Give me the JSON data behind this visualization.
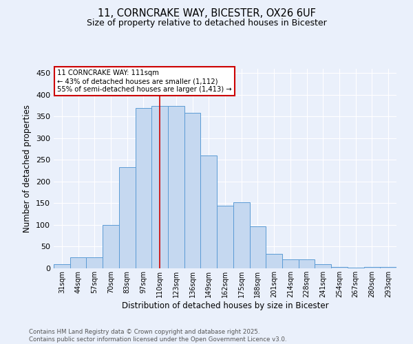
{
  "title1": "11, CORNCRAKE WAY, BICESTER, OX26 6UF",
  "title2": "Size of property relative to detached houses in Bicester",
  "xlabel": "Distribution of detached houses by size in Bicester",
  "ylabel": "Number of detached properties",
  "footer1": "Contains HM Land Registry data © Crown copyright and database right 2025.",
  "footer2": "Contains public sector information licensed under the Open Government Licence v3.0.",
  "bar_labels": [
    "31sqm",
    "44sqm",
    "57sqm",
    "70sqm",
    "83sqm",
    "97sqm",
    "110sqm",
    "123sqm",
    "136sqm",
    "149sqm",
    "162sqm",
    "175sqm",
    "188sqm",
    "201sqm",
    "214sqm",
    "228sqm",
    "241sqm",
    "254sqm",
    "267sqm",
    "280sqm",
    "293sqm"
  ],
  "bar_values": [
    10,
    25,
    25,
    100,
    233,
    370,
    375,
    375,
    358,
    260,
    145,
    153,
    97,
    33,
    20,
    20,
    10,
    3,
    1,
    3,
    3
  ],
  "bar_color": "#c5d8f0",
  "bar_edgecolor": "#5b9bd5",
  "bg_color": "#eaf0fb",
  "ylim": [
    0,
    460
  ],
  "yticks": [
    0,
    50,
    100,
    150,
    200,
    250,
    300,
    350,
    400,
    450
  ],
  "vline_x": 6,
  "annotation_title": "11 CORNCRAKE WAY: 111sqm",
  "annotation_line1": "← 43% of detached houses are smaller (1,112)",
  "annotation_line2": "55% of semi-detached houses are larger (1,413) →",
  "annotation_box_color": "#ffffff",
  "annotation_box_edgecolor": "#cc0000",
  "grid_color": "#ffffff",
  "vline_color": "#cc0000"
}
